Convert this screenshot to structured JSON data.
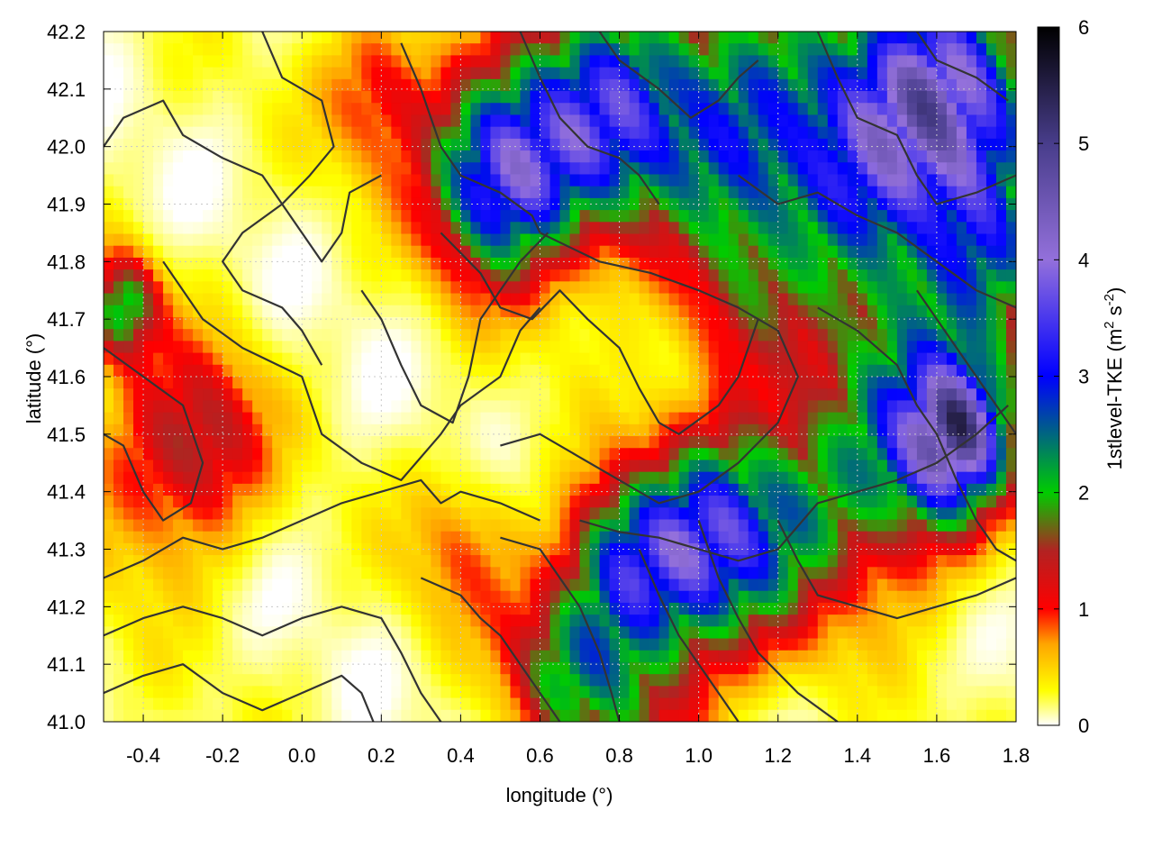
{
  "chart_data": {
    "type": "heatmap",
    "title": "",
    "xlabel": "longitude (°)",
    "ylabel": "latitude (°)",
    "xlim": [
      -0.5,
      1.8
    ],
    "ylim": [
      41.0,
      42.2
    ],
    "x_ticks": [
      "-0.4",
      "-0.2",
      "0.0",
      "0.2",
      "0.4",
      "0.6",
      "0.8",
      "1.0",
      "1.2",
      "1.4",
      "1.6",
      "1.8"
    ],
    "x_tick_values": [
      -0.4,
      -0.2,
      0.0,
      0.2,
      0.4,
      0.6,
      0.8,
      1.0,
      1.2,
      1.4,
      1.6,
      1.8
    ],
    "y_ticks": [
      "41.0",
      "41.1",
      "41.2",
      "41.3",
      "41.4",
      "41.5",
      "41.6",
      "41.7",
      "41.8",
      "41.9",
      "42.0",
      "42.1",
      "42.2"
    ],
    "y_tick_values": [
      41.0,
      41.1,
      41.2,
      41.3,
      41.4,
      41.5,
      41.6,
      41.7,
      41.8,
      41.9,
      42.0,
      42.1,
      42.2
    ],
    "grid": true,
    "colorbar": {
      "label_main": "1stlevel-TKE (m",
      "label_sup1": "2",
      "label_mid": " s",
      "label_sup2": "-2",
      "label_end": ")",
      "range": [
        0,
        6
      ],
      "ticks": [
        "0",
        "1",
        "2",
        "3",
        "4",
        "5",
        "6"
      ],
      "tick_values": [
        0,
        1,
        2,
        3,
        4,
        5,
        6
      ],
      "stops": [
        {
          "value": 0.0,
          "color": "#ffffff"
        },
        {
          "value": 0.3,
          "color": "#ffff00"
        },
        {
          "value": 0.7,
          "color": "#ffa500"
        },
        {
          "value": 1.0,
          "color": "#ff0000"
        },
        {
          "value": 1.5,
          "color": "#b22222"
        },
        {
          "value": 2.0,
          "color": "#00cc00"
        },
        {
          "value": 3.0,
          "color": "#0000ff"
        },
        {
          "value": 4.0,
          "color": "#9370db"
        },
        {
          "value": 5.0,
          "color": "#483d8b"
        },
        {
          "value": 6.0,
          "color": "#000000"
        }
      ]
    },
    "hotspots": [
      {
        "lon": 0.5,
        "lat": 41.95,
        "tke": 3.2,
        "spread": 0.12
      },
      {
        "lon": 0.75,
        "lat": 42.05,
        "tke": 2.6,
        "spread": 0.14
      },
      {
        "lon": 1.1,
        "lat": 42.05,
        "tke": 2.2,
        "spread": 0.18
      },
      {
        "lon": 1.45,
        "lat": 42.0,
        "tke": 2.4,
        "spread": 0.16
      },
      {
        "lon": 1.65,
        "lat": 42.1,
        "tke": 2.8,
        "spread": 0.14
      },
      {
        "lon": 1.75,
        "lat": 41.8,
        "tke": 1.8,
        "spread": 0.12
      },
      {
        "lon": 1.65,
        "lat": 41.5,
        "tke": 3.5,
        "spread": 0.09
      },
      {
        "lon": 1.5,
        "lat": 41.45,
        "tke": 1.4,
        "spread": 0.14
      },
      {
        "lon": 1.0,
        "lat": 41.3,
        "tke": 2.5,
        "spread": 0.12
      },
      {
        "lon": 0.8,
        "lat": 41.28,
        "tke": 2.0,
        "spread": 0.1
      },
      {
        "lon": 1.2,
        "lat": 41.35,
        "tke": 1.6,
        "spread": 0.14
      },
      {
        "lon": 0.65,
        "lat": 41.1,
        "tke": 1.5,
        "spread": 0.1
      },
      {
        "lon": 0.85,
        "lat": 41.05,
        "tke": 1.3,
        "spread": 0.12
      },
      {
        "lon": -0.45,
        "lat": 41.72,
        "tke": 1.9,
        "spread": 0.06
      },
      {
        "lon": -0.35,
        "lat": 41.45,
        "tke": 0.9,
        "spread": 0.14
      },
      {
        "lon": -0.22,
        "lat": 41.5,
        "tke": 0.7,
        "spread": 0.1
      },
      {
        "lon": 1.1,
        "lat": 41.72,
        "tke": 0.8,
        "spread": 0.1
      },
      {
        "lon": 0.2,
        "lat": 42.1,
        "tke": 0.9,
        "spread": 0.1
      },
      {
        "lon": 1.5,
        "lat": 41.65,
        "tke": 0.9,
        "spread": 0.2
      },
      {
        "lon": 0.4,
        "lat": 41.3,
        "tke": 0.6,
        "spread": 0.1
      }
    ],
    "contours": [
      [
        [
          -0.5,
          42.0
        ],
        [
          -0.45,
          42.05
        ],
        [
          -0.35,
          42.08
        ],
        [
          -0.3,
          42.02
        ],
        [
          -0.2,
          41.98
        ],
        [
          -0.1,
          41.95
        ],
        [
          -0.05,
          41.9
        ],
        [
          -0.15,
          41.85
        ],
        [
          -0.2,
          41.8
        ],
        [
          -0.15,
          41.75
        ],
        [
          -0.05,
          41.72
        ],
        [
          0.0,
          41.68
        ],
        [
          0.05,
          41.62
        ]
      ],
      [
        [
          -0.1,
          42.2
        ],
        [
          -0.05,
          42.12
        ],
        [
          0.05,
          42.08
        ],
        [
          0.08,
          42.0
        ],
        [
          0.02,
          41.95
        ],
        [
          -0.05,
          41.9
        ],
        [
          0.0,
          41.85
        ],
        [
          0.05,
          41.8
        ],
        [
          0.1,
          41.85
        ],
        [
          0.12,
          41.92
        ],
        [
          0.2,
          41.95
        ]
      ],
      [
        [
          0.25,
          42.18
        ],
        [
          0.3,
          42.1
        ],
        [
          0.35,
          42.0
        ],
        [
          0.4,
          41.95
        ],
        [
          0.5,
          41.92
        ],
        [
          0.58,
          41.88
        ],
        [
          0.6,
          41.85
        ]
      ],
      [
        [
          0.55,
          42.2
        ],
        [
          0.6,
          42.12
        ],
        [
          0.65,
          42.05
        ],
        [
          0.72,
          42.0
        ],
        [
          0.8,
          41.98
        ],
        [
          0.85,
          41.95
        ],
        [
          0.9,
          41.9
        ]
      ],
      [
        [
          0.75,
          42.2
        ],
        [
          0.8,
          42.15
        ],
        [
          0.9,
          42.1
        ],
        [
          0.98,
          42.05
        ],
        [
          1.05,
          42.08
        ],
        [
          1.1,
          42.12
        ],
        [
          1.15,
          42.15
        ]
      ],
      [
        [
          -0.5,
          41.65
        ],
        [
          -0.4,
          41.6
        ],
        [
          -0.3,
          41.55
        ],
        [
          -0.25,
          41.45
        ],
        [
          -0.28,
          41.38
        ],
        [
          -0.35,
          41.35
        ],
        [
          -0.4,
          41.4
        ],
        [
          -0.45,
          41.48
        ],
        [
          -0.5,
          41.5
        ]
      ],
      [
        [
          -0.35,
          41.8
        ],
        [
          -0.25,
          41.7
        ],
        [
          -0.15,
          41.65
        ],
        [
          0.0,
          41.6
        ],
        [
          0.05,
          41.5
        ],
        [
          0.15,
          41.45
        ],
        [
          0.25,
          41.42
        ],
        [
          0.35,
          41.5
        ],
        [
          0.4,
          41.55
        ],
        [
          0.5,
          41.6
        ],
        [
          0.55,
          41.68
        ],
        [
          0.6,
          41.72
        ]
      ],
      [
        [
          0.15,
          41.75
        ],
        [
          0.2,
          41.7
        ],
        [
          0.25,
          41.62
        ],
        [
          0.3,
          41.55
        ],
        [
          0.38,
          41.52
        ],
        [
          0.42,
          41.6
        ],
        [
          0.45,
          41.7
        ],
        [
          0.5,
          41.75
        ],
        [
          0.55,
          41.8
        ],
        [
          0.62,
          41.85
        ]
      ],
      [
        [
          0.35,
          41.85
        ],
        [
          0.45,
          41.78
        ],
        [
          0.5,
          41.72
        ],
        [
          0.58,
          41.7
        ],
        [
          0.65,
          41.75
        ],
        [
          0.72,
          41.7
        ],
        [
          0.8,
          41.65
        ],
        [
          0.85,
          41.58
        ],
        [
          0.9,
          41.52
        ],
        [
          0.95,
          41.5
        ],
        [
          1.05,
          41.55
        ],
        [
          1.1,
          41.6
        ],
        [
          1.15,
          41.7
        ]
      ],
      [
        [
          0.6,
          41.85
        ],
        [
          0.75,
          41.8
        ],
        [
          0.88,
          41.78
        ],
        [
          1.0,
          41.75
        ],
        [
          1.1,
          41.72
        ],
        [
          1.2,
          41.68
        ],
        [
          1.25,
          41.6
        ],
        [
          1.2,
          41.52
        ],
        [
          1.1,
          41.45
        ],
        [
          1.0,
          41.4
        ],
        [
          0.9,
          41.38
        ],
        [
          0.8,
          41.42
        ],
        [
          0.7,
          41.46
        ],
        [
          0.6,
          41.5
        ],
        [
          0.5,
          41.48
        ]
      ],
      [
        [
          -0.5,
          41.25
        ],
        [
          -0.4,
          41.28
        ],
        [
          -0.3,
          41.32
        ],
        [
          -0.2,
          41.3
        ],
        [
          -0.1,
          41.32
        ],
        [
          0.0,
          41.35
        ],
        [
          0.1,
          41.38
        ],
        [
          0.2,
          41.4
        ],
        [
          0.3,
          41.42
        ],
        [
          0.35,
          41.38
        ],
        [
          0.4,
          41.4
        ],
        [
          0.5,
          41.38
        ],
        [
          0.6,
          41.35
        ]
      ],
      [
        [
          -0.5,
          41.15
        ],
        [
          -0.4,
          41.18
        ],
        [
          -0.3,
          41.2
        ],
        [
          -0.2,
          41.18
        ],
        [
          -0.1,
          41.15
        ],
        [
          0.0,
          41.18
        ],
        [
          0.1,
          41.2
        ],
        [
          0.2,
          41.18
        ],
        [
          0.25,
          41.12
        ],
        [
          0.3,
          41.05
        ],
        [
          0.35,
          41.0
        ]
      ],
      [
        [
          -0.5,
          41.05
        ],
        [
          -0.4,
          41.08
        ],
        [
          -0.3,
          41.1
        ],
        [
          -0.2,
          41.05
        ],
        [
          -0.1,
          41.02
        ],
        [
          0.0,
          41.05
        ],
        [
          0.1,
          41.08
        ],
        [
          0.15,
          41.05
        ],
        [
          0.18,
          41.0
        ]
      ],
      [
        [
          0.3,
          41.25
        ],
        [
          0.4,
          41.22
        ],
        [
          0.45,
          41.18
        ],
        [
          0.5,
          41.15
        ],
        [
          0.55,
          41.1
        ],
        [
          0.6,
          41.05
        ],
        [
          0.65,
          41.0
        ]
      ],
      [
        [
          0.5,
          41.32
        ],
        [
          0.6,
          41.3
        ],
        [
          0.65,
          41.25
        ],
        [
          0.7,
          41.2
        ],
        [
          0.75,
          41.12
        ],
        [
          0.78,
          41.05
        ],
        [
          0.8,
          41.0
        ]
      ],
      [
        [
          0.7,
          41.35
        ],
        [
          0.8,
          41.33
        ],
        [
          0.9,
          41.32
        ],
        [
          1.0,
          41.3
        ],
        [
          1.1,
          41.28
        ],
        [
          1.2,
          41.3
        ],
        [
          1.3,
          41.38
        ],
        [
          1.4,
          41.4
        ],
        [
          1.5,
          41.42
        ],
        [
          1.6,
          41.45
        ],
        [
          1.7,
          41.5
        ],
        [
          1.78,
          41.55
        ]
      ],
      [
        [
          0.85,
          41.3
        ],
        [
          0.9,
          41.22
        ],
        [
          0.95,
          41.15
        ],
        [
          1.0,
          41.1
        ],
        [
          1.05,
          41.05
        ],
        [
          1.1,
          41.0
        ]
      ],
      [
        [
          1.0,
          41.35
        ],
        [
          1.05,
          41.25
        ],
        [
          1.1,
          41.18
        ],
        [
          1.15,
          41.12
        ],
        [
          1.25,
          41.05
        ],
        [
          1.35,
          41.0
        ]
      ],
      [
        [
          1.2,
          41.35
        ],
        [
          1.25,
          41.28
        ],
        [
          1.3,
          41.22
        ],
        [
          1.4,
          41.2
        ],
        [
          1.5,
          41.18
        ],
        [
          1.6,
          41.2
        ],
        [
          1.7,
          41.22
        ],
        [
          1.8,
          41.25
        ]
      ],
      [
        [
          1.3,
          41.72
        ],
        [
          1.4,
          41.68
        ],
        [
          1.5,
          41.62
        ],
        [
          1.55,
          41.55
        ],
        [
          1.6,
          41.5
        ],
        [
          1.65,
          41.42
        ],
        [
          1.7,
          41.35
        ],
        [
          1.75,
          41.3
        ],
        [
          1.8,
          41.28
        ]
      ],
      [
        [
          1.1,
          41.95
        ],
        [
          1.2,
          41.9
        ],
        [
          1.3,
          41.92
        ],
        [
          1.4,
          41.88
        ],
        [
          1.5,
          41.85
        ],
        [
          1.6,
          41.8
        ],
        [
          1.7,
          41.75
        ],
        [
          1.8,
          41.72
        ]
      ],
      [
        [
          1.3,
          42.2
        ],
        [
          1.35,
          42.12
        ],
        [
          1.4,
          42.05
        ],
        [
          1.5,
          42.02
        ],
        [
          1.55,
          41.95
        ],
        [
          1.6,
          41.9
        ],
        [
          1.7,
          41.92
        ],
        [
          1.8,
          41.95
        ]
      ],
      [
        [
          1.55,
          42.2
        ],
        [
          1.6,
          42.15
        ],
        [
          1.7,
          42.12
        ],
        [
          1.78,
          42.08
        ]
      ],
      [
        [
          1.55,
          41.75
        ],
        [
          1.62,
          41.68
        ],
        [
          1.7,
          41.6
        ],
        [
          1.75,
          41.55
        ],
        [
          1.8,
          41.5
        ]
      ]
    ]
  }
}
